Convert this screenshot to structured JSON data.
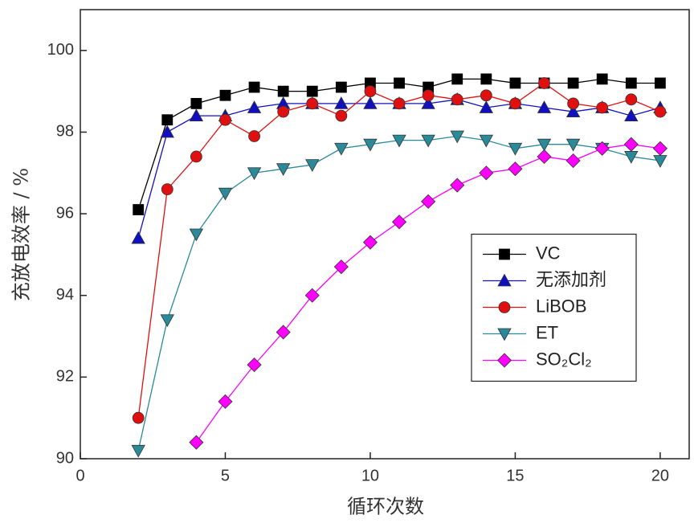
{
  "chart_data": {
    "type": "line",
    "x_label": "循环次数",
    "y_label": "充放电效率 / %",
    "x": [
      2,
      3,
      4,
      5,
      6,
      7,
      8,
      9,
      10,
      11,
      12,
      13,
      14,
      15,
      16,
      17,
      18,
      19,
      20
    ],
    "series": [
      {
        "name": "VC",
        "color": "#000000",
        "marker": "square",
        "values": [
          96.1,
          98.3,
          98.7,
          98.9,
          99.1,
          99.0,
          99.0,
          99.1,
          99.2,
          99.2,
          99.1,
          99.3,
          99.3,
          99.2,
          99.2,
          99.2,
          99.3,
          99.2,
          99.2
        ]
      },
      {
        "name": "无添加剂",
        "color": "#1010c0",
        "marker": "triangle",
        "values": [
          95.4,
          98.0,
          98.4,
          98.4,
          98.6,
          98.7,
          98.7,
          98.7,
          98.7,
          98.7,
          98.7,
          98.8,
          98.6,
          98.7,
          98.6,
          98.5,
          98.6,
          98.4,
          98.6
        ]
      },
      {
        "name": "LiBOB",
        "color": "#e01010",
        "marker": "circle",
        "values": [
          91.0,
          96.6,
          97.4,
          98.3,
          97.9,
          98.5,
          98.7,
          98.4,
          99.0,
          98.7,
          98.9,
          98.8,
          98.9,
          98.7,
          99.2,
          98.7,
          98.6,
          98.8,
          98.5
        ]
      },
      {
        "name": "ET",
        "color": "#2a8a9a",
        "marker": "triangle-down",
        "values": [
          90.2,
          93.4,
          95.5,
          96.5,
          97.0,
          97.1,
          97.2,
          97.6,
          97.7,
          97.8,
          97.8,
          97.9,
          97.8,
          97.6,
          97.7,
          97.7,
          97.6,
          97.4,
          97.3
        ]
      },
      {
        "name": "SO₂Cl₂",
        "color": "#ff00ff",
        "marker": "diamond",
        "values": [
          null,
          null,
          90.4,
          91.4,
          92.3,
          93.1,
          94.0,
          94.7,
          95.3,
          95.8,
          96.3,
          96.7,
          97.0,
          97.1,
          97.4,
          97.3,
          97.6,
          97.7,
          97.6
        ]
      }
    ],
    "xlim": [
      0,
      21
    ],
    "xticks": [
      0,
      5,
      10,
      15,
      20
    ],
    "ylim": [
      90,
      101
    ],
    "yticks": [
      90,
      92,
      94,
      96,
      98,
      100
    ],
    "legend_position": "center right"
  }
}
